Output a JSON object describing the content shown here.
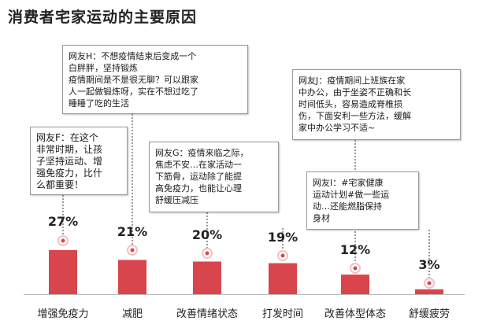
{
  "title": "消费者宅家运动的主要原因",
  "colors": {
    "bar": "#d9454c",
    "dot": "#d9454c",
    "dot_ring": "#f3c2c4",
    "connector": "#333333",
    "baseline": "#bbbbbb"
  },
  "chart_data": {
    "type": "bar",
    "title": "消费者宅家运动的主要原因",
    "categories": [
      "增强免疫力",
      "减肥",
      "改善情绪状态",
      "打发时间",
      "改善体型体态",
      "舒缓疲劳"
    ],
    "values": [
      27,
      21,
      20,
      19,
      12,
      3
    ],
    "labels": [
      "27%",
      "21%",
      "20%",
      "19%",
      "12%",
      "3%"
    ],
    "unit": "%",
    "ylim": [
      0,
      30
    ],
    "grid": false,
    "legend": "none"
  },
  "bubbles": [
    {
      "id": "h",
      "lines": [
        "网友H：不想疫情结束后变成一个",
        "白胖胖，坚持锻炼",
        "疫情期间是不是很无聊？可以跟家",
        "人一起做锻炼呀，实在不想过吃了",
        "睡睡了吃的生活"
      ]
    },
    {
      "id": "f",
      "lines": [
        "网友F：在这个",
        "非常时期，让孩",
        "子坚持运动、增",
        "强免疫力，比什",
        "么都重要！"
      ]
    },
    {
      "id": "g",
      "lines": [
        "网友G：疫情来临之际，",
        "焦虑不安…在家活动一",
        "下筋骨，运动除了能提",
        "高免疫力，也能让心理",
        "舒缓压减压"
      ]
    },
    {
      "id": "j",
      "lines": [
        "网友J：疫情期间上班族在家",
        "中办公，由于坐姿不正确和长",
        "时间低头，容易造成脊椎损",
        "伤，下面安利一些方法，缓解",
        "家中办公学习不适~"
      ]
    },
    {
      "id": "i",
      "lines": [
        "网友I：#宅家健康",
        "运动计划#做一些运",
        "动…还能燃脂保持",
        "身材"
      ]
    }
  ]
}
